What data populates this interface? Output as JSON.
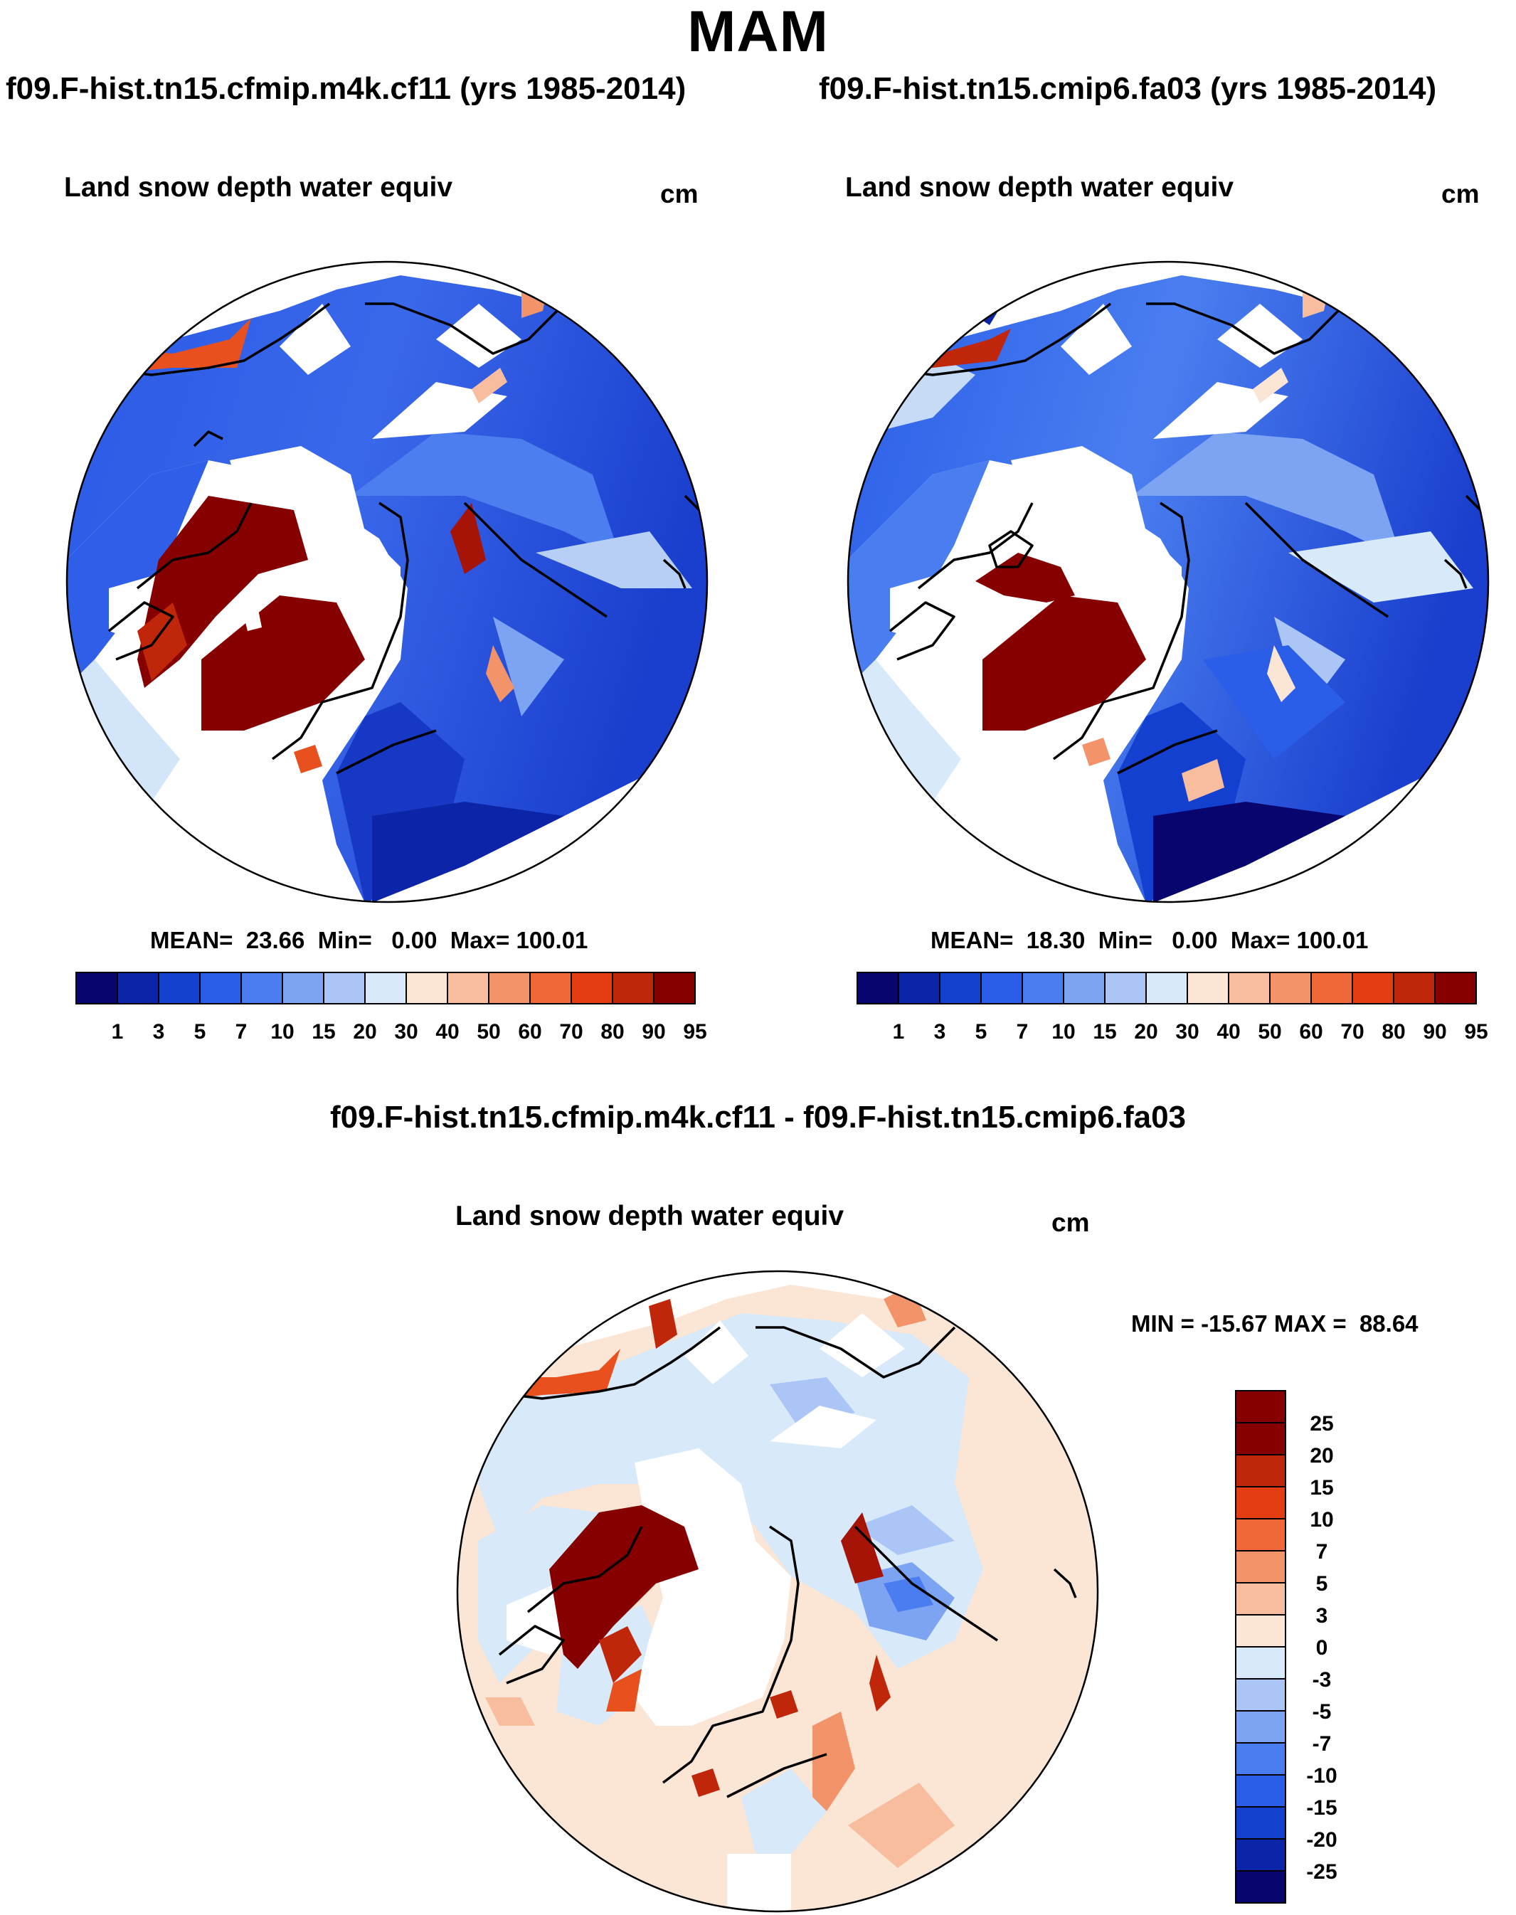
{
  "figure": {
    "season": "MAM",
    "variable": "Land snow depth water equiv",
    "units": "cm"
  },
  "panels": [
    {
      "id": "case",
      "title": "f09.F-hist.tn15.cfmip.m4k.cf11 (yrs 1985-2014)",
      "variable": "Land snow depth water equiv",
      "units": "cm",
      "stats_text": "MEAN=  23.66  Min=   0.00  Max= 100.01",
      "stats": {
        "mean": 23.66,
        "min": 0.0,
        "max": 100.01
      }
    },
    {
      "id": "control",
      "title": "f09.F-hist.tn15.cmip6.fa03 (yrs 1985-2014)",
      "variable": "Land snow depth water equiv",
      "units": "cm",
      "stats_text": "MEAN=  18.30  Min=   0.00  Max= 100.01",
      "stats": {
        "mean": 18.3,
        "min": 0.0,
        "max": 100.01
      }
    },
    {
      "id": "difference",
      "title": "f09.F-hist.tn15.cfmip.m4k.cf11 - f09.F-hist.tn15.cmip6.fa03",
      "variable": "Land snow depth water equiv",
      "units": "cm",
      "stats_text": "MIN = -15.67 MAX =  88.64",
      "stats": {
        "min": -15.67,
        "max": 88.64
      }
    }
  ],
  "colorbars": {
    "absolute": {
      "levels": [
        "1",
        "3",
        "5",
        "7",
        "10",
        "15",
        "20",
        "30",
        "40",
        "50",
        "60",
        "70",
        "80",
        "90",
        "95"
      ],
      "colors": [
        "#08056e",
        "#0b24a8",
        "#1440d0",
        "#2b5ee8",
        "#4a7ef0",
        "#7da4f2",
        "#abc6f6",
        "#d8e9fa",
        "#fbe6d6",
        "#f7bd9e",
        "#f3936a",
        "#f06838",
        "#e53d12",
        "#c0260a",
        "#870000"
      ]
    },
    "difference": {
      "levels": [
        "25",
        "20",
        "15",
        "10",
        "7",
        "5",
        "3",
        "0",
        "-3",
        "-5",
        "-7",
        "-10",
        "-15",
        "-20",
        "-25"
      ],
      "colors": [
        "#870000",
        "#c0260a",
        "#e53d12",
        "#f06838",
        "#f3936a",
        "#f7bd9e",
        "#fbe6d6",
        "#d8e9fa",
        "#abc6f6",
        "#7da4f2",
        "#4a7ef0",
        "#2b5ee8",
        "#1440d0",
        "#0b24a8",
        "#08056e"
      ]
    }
  }
}
